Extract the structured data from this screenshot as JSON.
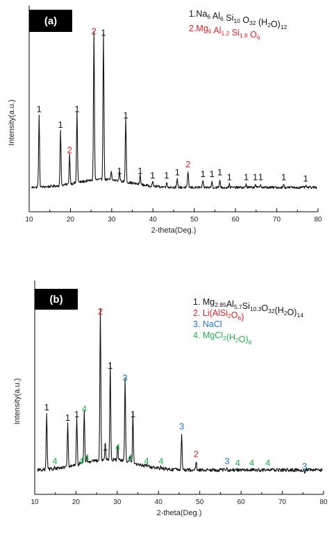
{
  "colors": {
    "phase1": "#111111",
    "phase2": "#e02020",
    "phase3": "#1f78c8",
    "phase4": "#22b14c",
    "trace": "#111111"
  },
  "chart_data": [
    {
      "type": "line",
      "panel_label": "(a)",
      "xlabel": "2-theta(Deg.)",
      "ylabel": "Intensity(a.u.)",
      "xlim": [
        10,
        80
      ],
      "xticks": [
        "10",
        "20",
        "30",
        "40",
        "50",
        "60",
        "70",
        "80"
      ],
      "grid": false,
      "legend": {
        "placement": "top-right",
        "entries": [
          {
            "id": "1",
            "color": "#111111",
            "parts": [
              [
                "1.Na",
                "n"
              ],
              [
                "6",
                "sub"
              ],
              [
                " Al",
                "n"
              ],
              [
                "6",
                "sub"
              ],
              [
                " Si",
                "n"
              ],
              [
                "10",
                "sub"
              ],
              [
                " O",
                "n"
              ],
              [
                "32",
                "sub"
              ],
              [
                " (H",
                "n"
              ],
              [
                "2",
                "sub"
              ],
              [
                "O)",
                "n"
              ],
              [
                "12",
                "sub"
              ]
            ]
          },
          {
            "id": "2",
            "color": "#e02020",
            "parts": [
              [
                "2.Mg",
                "n"
              ],
              [
                "6",
                "sub"
              ],
              [
                " Al",
                "n"
              ],
              [
                "1.2",
                "sub"
              ],
              [
                " Si",
                "n"
              ],
              [
                "1.8",
                "sub"
              ],
              [
                " O",
                "n"
              ],
              [
                "6",
                "sub"
              ]
            ]
          }
        ]
      },
      "baseline": 3,
      "ymax": 100,
      "peaks": [
        {
          "x": 12.4,
          "y": 48,
          "label": "1",
          "phase": 1
        },
        {
          "x": 17.6,
          "y": 38,
          "label": "1",
          "phase": 1
        },
        {
          "x": 19.8,
          "y": 22,
          "label": "2",
          "phase": 2
        },
        {
          "x": 21.6,
          "y": 48,
          "label": "1",
          "phase": 1
        },
        {
          "x": 25.7,
          "y": 97,
          "label": "2",
          "phase": 2
        },
        {
          "x": 28.0,
          "y": 96,
          "label": "1",
          "phase": 1
        },
        {
          "x": 29.9,
          "y": 8,
          "label": "",
          "phase": 1
        },
        {
          "x": 31.9,
          "y": 9,
          "label": "1",
          "phase": 1
        },
        {
          "x": 33.4,
          "y": 44,
          "label": "1",
          "phase": 1
        },
        {
          "x": 36.9,
          "y": 9,
          "label": "1",
          "phase": 1
        },
        {
          "x": 39.9,
          "y": 6,
          "label": "1",
          "phase": 1
        },
        {
          "x": 43.3,
          "y": 6,
          "label": "1",
          "phase": 1
        },
        {
          "x": 45.9,
          "y": 8,
          "label": "1",
          "phase": 1
        },
        {
          "x": 48.5,
          "y": 13,
          "label": "2",
          "phase": 2
        },
        {
          "x": 52.1,
          "y": 7,
          "label": "1",
          "phase": 1
        },
        {
          "x": 54.3,
          "y": 7,
          "label": "1",
          "phase": 1
        },
        {
          "x": 56.2,
          "y": 8,
          "label": "1",
          "phase": 1
        },
        {
          "x": 58.5,
          "y": 5,
          "label": "1",
          "phase": 1
        },
        {
          "x": 62.6,
          "y": 5,
          "label": "1",
          "phase": 1
        },
        {
          "x": 64.8,
          "y": 5,
          "label": "1",
          "phase": 1
        },
        {
          "x": 66.1,
          "y": 5,
          "label": "1",
          "phase": 1
        },
        {
          "x": 71.7,
          "y": 5,
          "label": "1",
          "phase": 1
        },
        {
          "x": 77.0,
          "y": 4,
          "label": "1",
          "phase": 1
        }
      ]
    },
    {
      "type": "line",
      "panel_label": "(b)",
      "xlabel": "2-theta(Deg.)",
      "ylabel": "Intensity(a.u.)",
      "xlim": [
        10,
        80
      ],
      "xticks": [
        "10",
        "20",
        "30",
        "40",
        "50",
        "60",
        "70",
        "80"
      ],
      "grid": false,
      "legend": {
        "placement": "top-right",
        "entries": [
          {
            "id": "1",
            "color": "#111111",
            "parts": [
              [
                "1. Mg",
                "n"
              ],
              [
                "2.85",
                "sub"
              ],
              [
                "Al",
                "n"
              ],
              [
                "5.7",
                "sub"
              ],
              [
                "Si",
                "n"
              ],
              [
                "10.3",
                "sub"
              ],
              [
                "O",
                "n"
              ],
              [
                "32",
                "sub"
              ],
              [
                "(H",
                "n"
              ],
              [
                "2",
                "sub"
              ],
              [
                "O)",
                "n"
              ],
              [
                "14",
                "sub"
              ]
            ]
          },
          {
            "id": "2",
            "color": "#e02020",
            "parts": [
              [
                "2. Li(AlSi",
                "n"
              ],
              [
                "2",
                "sub"
              ],
              [
                "O",
                "n"
              ],
              [
                "6",
                "sub"
              ],
              [
                ")",
                "n"
              ]
            ]
          },
          {
            "id": "3",
            "color": "#1f78c8",
            "parts": [
              [
                "3. NaCl",
                "n"
              ]
            ]
          },
          {
            "id": "4",
            "color": "#22b14c",
            "parts": [
              [
                "4. MgCl",
                "n"
              ],
              [
                "2",
                "sub"
              ],
              [
                "(H",
                "n"
              ],
              [
                "2",
                "sub"
              ],
              [
                "O)",
                "n"
              ],
              [
                "6",
                "sub"
              ]
            ]
          }
        ]
      },
      "baseline": 5,
      "ymax": 100,
      "peaks": [
        {
          "x": 12.9,
          "y": 37,
          "label": "1",
          "phase": 1
        },
        {
          "x": 14.9,
          "y": 6,
          "label": "4",
          "phase": 4
        },
        {
          "x": 18.0,
          "y": 31,
          "label": "1",
          "phase": 1
        },
        {
          "x": 20.2,
          "y": 33,
          "label": "1",
          "phase": 1
        },
        {
          "x": 21.3,
          "y": 6,
          "label": "4",
          "phase": 4
        },
        {
          "x": 22.0,
          "y": 36,
          "label": "4",
          "phase": 4
        },
        {
          "x": 22.6,
          "y": 8,
          "label": "4",
          "phase": 4
        },
        {
          "x": 25.9,
          "y": 92,
          "label": "2",
          "phase": 2
        },
        {
          "x": 27.1,
          "y": 14,
          "label": "1",
          "phase": 1
        },
        {
          "x": 28.3,
          "y": 61,
          "label": "1",
          "phase": 1
        },
        {
          "x": 30.1,
          "y": 14,
          "label": "4",
          "phase": 4
        },
        {
          "x": 31.9,
          "y": 54,
          "label": "3",
          "phase": 3
        },
        {
          "x": 33.1,
          "y": 8,
          "label": "4",
          "phase": 4
        },
        {
          "x": 33.8,
          "y": 33,
          "label": "1",
          "phase": 1
        },
        {
          "x": 37.1,
          "y": 6,
          "label": "4",
          "phase": 4
        },
        {
          "x": 40.6,
          "y": 6,
          "label": "4",
          "phase": 4
        },
        {
          "x": 45.6,
          "y": 26,
          "label": "3",
          "phase": 3
        },
        {
          "x": 49.1,
          "y": 10,
          "label": "2",
          "phase": 2
        },
        {
          "x": 56.6,
          "y": 6,
          "label": "3",
          "phase": 3
        },
        {
          "x": 59.2,
          "y": 5,
          "label": "4",
          "phase": 4
        },
        {
          "x": 62.6,
          "y": 5,
          "label": "4",
          "phase": 4
        },
        {
          "x": 66.5,
          "y": 5,
          "label": "4",
          "phase": 4
        },
        {
          "x": 75.4,
          "y": 3,
          "label": "3",
          "phase": 3
        }
      ]
    }
  ]
}
